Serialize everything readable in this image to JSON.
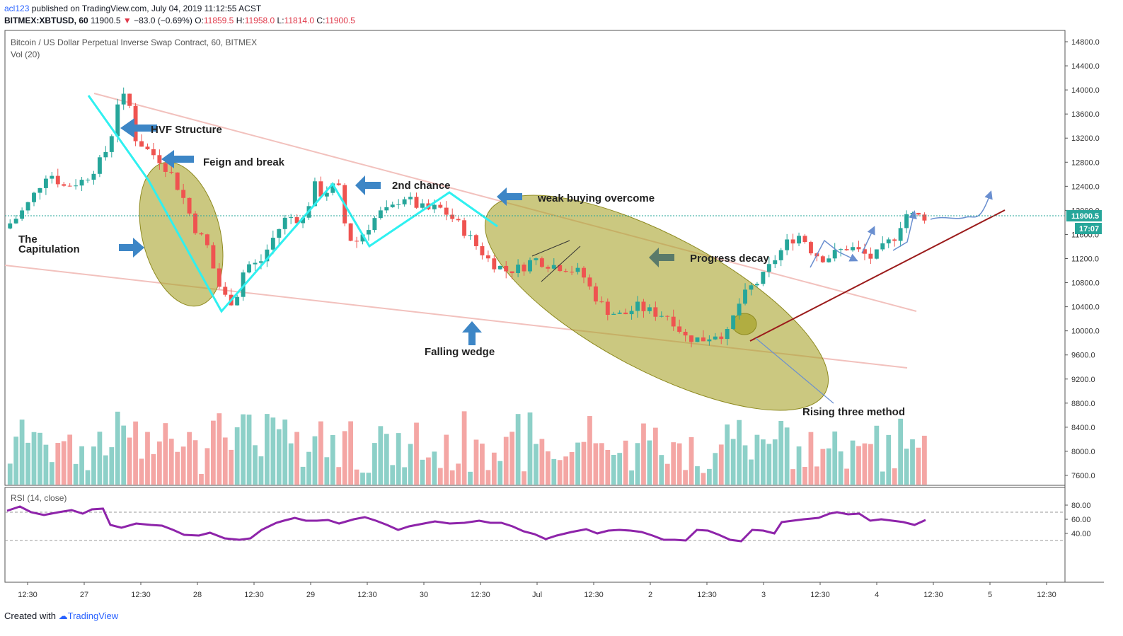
{
  "header": {
    "author": "acl123",
    "published": "published on TradingView.com, July 04, 2019 11:12:55 ACST",
    "symbol": "BITMEX:XBTUSD, 60",
    "last": "11900.5",
    "change": "−83.0 (−0.69%)",
    "open_label": "O:",
    "open": "11859.5",
    "high_label": "H:",
    "high": "11958.0",
    "low_label": "L:",
    "low": "11814.0",
    "close_label": "C:",
    "close": "11900.5"
  },
  "pane": {
    "title": "Bitcoin / US Dollar Perpetual Inverse Swap Contract, 60, BITMEX",
    "vol_label": "Vol (20)",
    "price_tag": "11900.5",
    "countdown": "17:07"
  },
  "rsi": {
    "label": "RSI (14, close)",
    "ticks": [
      "80.00",
      "60.00",
      "40.00"
    ]
  },
  "annotations": {
    "hvf": "HVF Structure",
    "feign": "Feign and break",
    "capitulation_1": "The",
    "capitulation_2": "Capitulation",
    "second_chance": "2nd chance",
    "weak_buying": "weak buying overcome",
    "progress_decay": "Progress decay",
    "falling_wedge": "Falling wedge",
    "rising_three": "Rising three method"
  },
  "footer": {
    "created": "Created with",
    "brand": "TradingView"
  },
  "colors": {
    "up": "#26a69a",
    "down": "#ef5350",
    "vol_up": "#8dd0c8",
    "vol_down": "#f4a6a4",
    "rsi": "#8e24aa",
    "cyan": "#2ff0f0",
    "ellipse": "#b5b13c",
    "arrow": "#3d86c6",
    "trend": "#9b1b1b",
    "wedge": "#f2c1bd"
  },
  "chart_data": {
    "type": "candlestick",
    "title": "Bitcoin / US Dollar Perpetual Inverse Swap Contract, 60, BITMEX",
    "ylim": [
      7400,
      14900
    ],
    "y_ticks": [
      "14800.0",
      "14400.0",
      "14000.0",
      "13600.0",
      "13200.0",
      "12800.0",
      "12400.0",
      "12000.0",
      "11600.0",
      "11200.0",
      "10800.0",
      "10400.0",
      "10000.0",
      "9600.0",
      "9200.0",
      "8800.0",
      "8400.0",
      "8000.0",
      "7600.0"
    ],
    "x_ticks": [
      "12:30",
      "27",
      "12:30",
      "28",
      "12:30",
      "29",
      "12:30",
      "30",
      "12:30",
      "Jul",
      "12:30",
      "2",
      "12:30",
      "3",
      "12:30",
      "4",
      "12:30",
      "5",
      "12:30"
    ],
    "path": [
      [
        0,
        11700
      ],
      [
        7,
        11900
      ],
      [
        13,
        12150
      ],
      [
        22,
        12650
      ],
      [
        30,
        12400
      ],
      [
        40,
        12500
      ],
      [
        48,
        12800
      ],
      [
        53,
        13100
      ],
      [
        57,
        13800
      ],
      [
        62,
        13900
      ],
      [
        66,
        13200
      ],
      [
        72,
        13000
      ],
      [
        78,
        12850
      ],
      [
        84,
        12600
      ],
      [
        90,
        12200
      ],
      [
        96,
        11700
      ],
      [
        102,
        11400
      ],
      [
        107,
        10800
      ],
      [
        112,
        10500
      ],
      [
        116,
        10500
      ],
      [
        121,
        11100
      ],
      [
        128,
        11100
      ],
      [
        136,
        11600
      ],
      [
        142,
        11900
      ],
      [
        150,
        11850
      ],
      [
        156,
        12400
      ],
      [
        160,
        12250
      ],
      [
        164,
        12400
      ],
      [
        168,
        12350
      ],
      [
        172,
        11600
      ],
      [
        176,
        11450
      ],
      [
        182,
        11700
      ],
      [
        188,
        11950
      ],
      [
        194,
        12000
      ],
      [
        200,
        12250
      ],
      [
        206,
        12100
      ],
      [
        212,
        12000
      ],
      [
        218,
        12050
      ],
      [
        224,
        11900
      ],
      [
        230,
        11700
      ],
      [
        236,
        11450
      ],
      [
        244,
        11150
      ],
      [
        252,
        11000
      ],
      [
        260,
        11050
      ],
      [
        266,
        11200
      ],
      [
        274,
        11100
      ],
      [
        282,
        11050
      ],
      [
        290,
        10950
      ],
      [
        296,
        10600
      ],
      [
        302,
        10350
      ],
      [
        310,
        10250
      ],
      [
        318,
        10400
      ],
      [
        326,
        10300
      ],
      [
        334,
        10250
      ],
      [
        342,
        9900
      ],
      [
        350,
        9850
      ],
      [
        357,
        9950
      ],
      [
        363,
        9950
      ],
      [
        368,
        10400
      ],
      [
        374,
        10700
      ],
      [
        380,
        10850
      ],
      [
        387,
        11200
      ],
      [
        394,
        11500
      ],
      [
        400,
        11600
      ],
      [
        406,
        11300
      ],
      [
        412,
        11200
      ],
      [
        418,
        11300
      ],
      [
        424,
        11400
      ],
      [
        430,
        11300
      ],
      [
        436,
        11200
      ],
      [
        442,
        11400
      ],
      [
        448,
        11600
      ],
      [
        452,
        11950
      ],
      [
        458,
        11900
      ]
    ],
    "rsi_path": [
      [
        0,
        72
      ],
      [
        7,
        78
      ],
      [
        13,
        70
      ],
      [
        20,
        66
      ],
      [
        28,
        70
      ],
      [
        35,
        73
      ],
      [
        41,
        68
      ],
      [
        46,
        74
      ],
      [
        52,
        75
      ],
      [
        56,
        52
      ],
      [
        62,
        48
      ],
      [
        70,
        54
      ],
      [
        78,
        52
      ],
      [
        84,
        51
      ],
      [
        90,
        45
      ],
      [
        96,
        38
      ],
      [
        104,
        37
      ],
      [
        110,
        41
      ],
      [
        118,
        33
      ],
      [
        126,
        31
      ],
      [
        132,
        33
      ],
      [
        138,
        45
      ],
      [
        146,
        55
      ],
      [
        150,
        58
      ],
      [
        156,
        62
      ],
      [
        162,
        58
      ],
      [
        168,
        58
      ],
      [
        174,
        59
      ],
      [
        180,
        54
      ],
      [
        188,
        60
      ],
      [
        194,
        63
      ],
      [
        200,
        58
      ],
      [
        206,
        52
      ],
      [
        212,
        45
      ],
      [
        218,
        50
      ],
      [
        224,
        53
      ],
      [
        232,
        57
      ],
      [
        240,
        54
      ],
      [
        248,
        55
      ],
      [
        256,
        58
      ],
      [
        262,
        55
      ],
      [
        268,
        55
      ],
      [
        274,
        50
      ],
      [
        280,
        43
      ],
      [
        286,
        39
      ],
      [
        292,
        32
      ],
      [
        298,
        37
      ],
      [
        306,
        42
      ],
      [
        314,
        46
      ],
      [
        320,
        40
      ],
      [
        326,
        44
      ],
      [
        332,
        45
      ],
      [
        338,
        44
      ],
      [
        344,
        42
      ],
      [
        350,
        37
      ],
      [
        356,
        31
      ],
      [
        362,
        31
      ],
      [
        368,
        30
      ],
      [
        374,
        45
      ],
      [
        380,
        44
      ],
      [
        386,
        38
      ],
      [
        392,
        31
      ],
      [
        398,
        29
      ],
      [
        404,
        45
      ],
      [
        410,
        44
      ],
      [
        416,
        40
      ],
      [
        420,
        56
      ],
      [
        426,
        58
      ],
      [
        432,
        60
      ],
      [
        440,
        62
      ],
      [
        446,
        68
      ],
      [
        450,
        70
      ],
      [
        456,
        67
      ],
      [
        462,
        68
      ],
      [
        468,
        58
      ],
      [
        474,
        60
      ],
      [
        480,
        58
      ],
      [
        486,
        56
      ],
      [
        492,
        52
      ],
      [
        498,
        59
      ]
    ]
  }
}
